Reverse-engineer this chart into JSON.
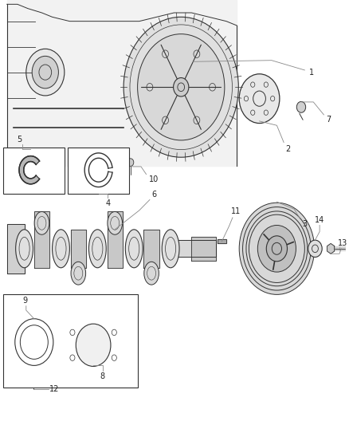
{
  "background_color": "#ffffff",
  "title": "",
  "fig_width": 4.38,
  "fig_height": 5.33,
  "dpi": 100,
  "line_color": "#333333",
  "label_fontsize": 7,
  "label_color": "#222222",
  "leader_color": "#888888"
}
